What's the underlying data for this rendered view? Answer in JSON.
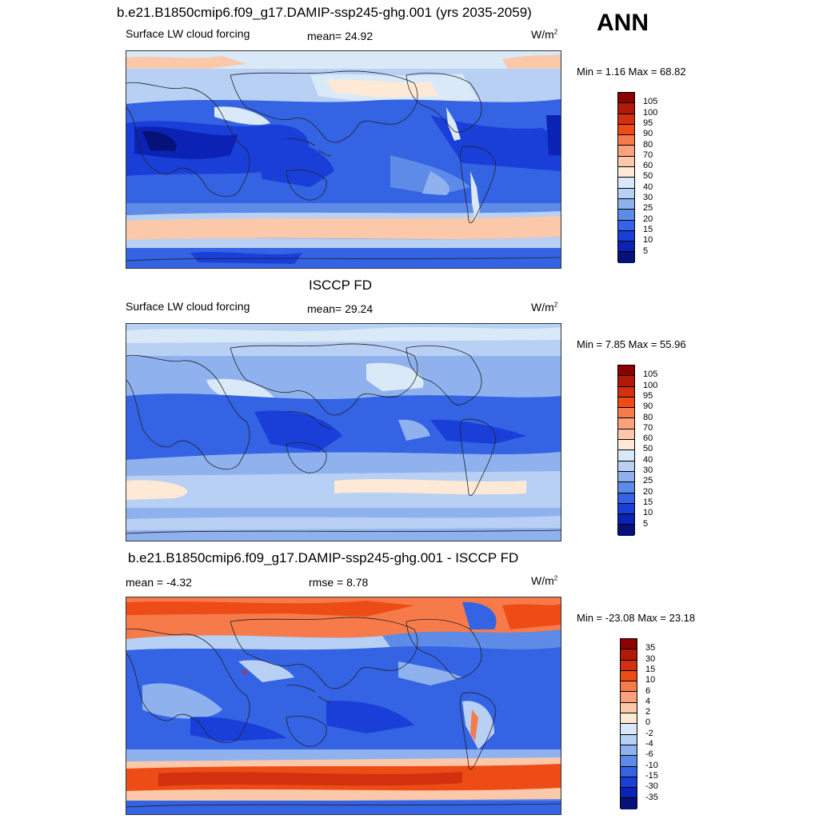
{
  "season": "ANN",
  "units_main": "W/m",
  "units_sup": "2",
  "panels": [
    {
      "title": "b.e21.B1850cmip6.f09_g17.DAMIP-ssp245-ghg.001 (yrs 2035-2059)",
      "left_label": "Surface LW cloud forcing",
      "center_label": "mean=  24.92",
      "minmax": "Min =   1.16 Max =  68.82",
      "palette": "abs"
    },
    {
      "title": "ISCCP FD",
      "left_label": "Surface LW cloud forcing",
      "center_label": "mean=  29.24",
      "minmax": "Min =   7.85 Max =  55.96",
      "palette": "abs"
    },
    {
      "title": "b.e21.B1850cmip6.f09_g17.DAMIP-ssp245-ghg.001 - ISCCP FD",
      "left_label": "mean =  -4.32",
      "center_label": "rmse =   8.78",
      "minmax": "Min = -23.08 Max =  23.18",
      "palette": "diff"
    }
  ],
  "colorbars": {
    "abs_levels": [
      "105",
      "100",
      "95",
      "90",
      "80",
      "70",
      "60",
      "50",
      "40",
      "30",
      "25",
      "20",
      "15",
      "10",
      "5"
    ],
    "abs_colors": [
      "#8b0000",
      "#b01a08",
      "#d2300e",
      "#ee4c16",
      "#f77b4a",
      "#fba27c",
      "#fbc8a9",
      "#fde9d6",
      "#d9e9f8",
      "#b7d0f4",
      "#8fb2ef",
      "#5e8be8",
      "#3463e4",
      "#1a3fd9",
      "#0b22b4",
      "#06117a"
    ],
    "diff_levels": [
      "35",
      "30",
      "15",
      "10",
      "6",
      "4",
      "2",
      "0",
      "-2",
      "-4",
      "-6",
      "-10",
      "-15",
      "-30",
      "-35"
    ],
    "diff_colors": [
      "#8b0000",
      "#b01a08",
      "#d2300e",
      "#ee4c16",
      "#f77b4a",
      "#fba27c",
      "#fbc8a9",
      "#fde9d6",
      "#d9e9f8",
      "#b7d0f4",
      "#8fb2ef",
      "#5e8be8",
      "#3463e4",
      "#1a3fd9",
      "#0b22b4",
      "#06117a"
    ]
  }
}
